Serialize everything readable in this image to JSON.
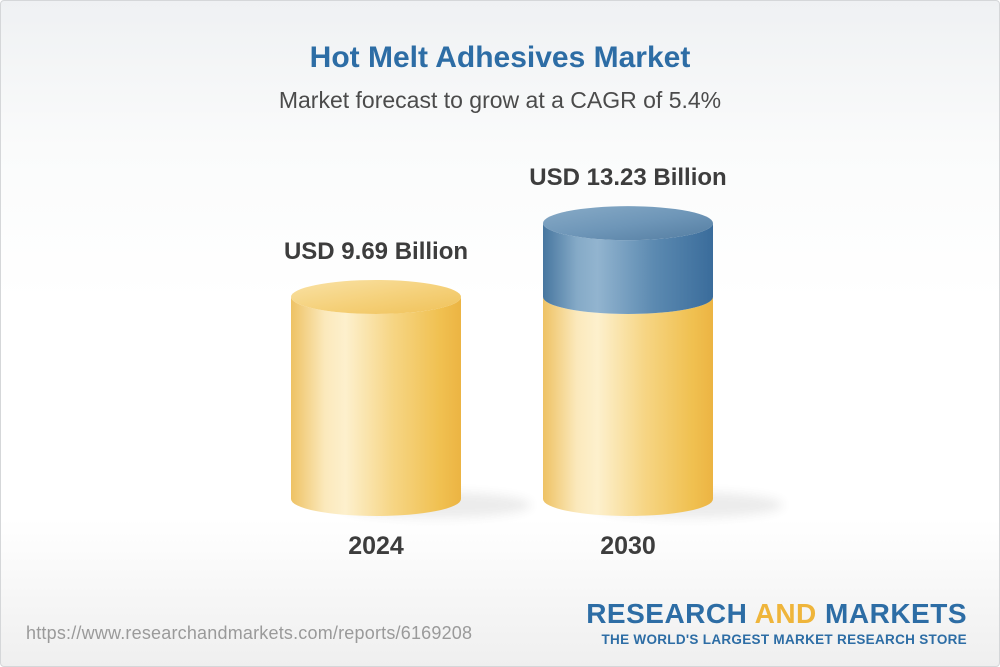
{
  "chart_data": {
    "type": "bar",
    "subtype": "3d-cylinder",
    "title": "Hot Melt Adhesives Market",
    "subtitle": "Market forecast to grow at a CAGR of 5.4%",
    "cagr_percent": 5.4,
    "unit": "USD Billion",
    "categories": [
      "2024",
      "2030"
    ],
    "values": [
      9.69,
      13.23
    ],
    "bars": [
      {
        "category": "2024",
        "value": 9.69,
        "label": "USD 9.69 Billion",
        "segments": [
          {
            "value": 9.69,
            "color": "gold"
          }
        ]
      },
      {
        "category": "2030",
        "value": 13.23,
        "label": "USD 13.23 Billion",
        "segments": [
          {
            "value": 9.69,
            "color": "gold"
          },
          {
            "value": 3.54,
            "color": "blue"
          }
        ]
      }
    ],
    "legend": "none",
    "axes": "none",
    "colors": {
      "gold": "#f2c763",
      "blue": "#4f7ea8",
      "label_text": "#3d3d3d",
      "title_blue": "#2d6da5"
    }
  },
  "footer": {
    "url": "https://www.researchandmarkets.com/reports/6169208",
    "brand": {
      "word1": "RESEARCH",
      "word2": "AND",
      "word3": "MARKETS",
      "tagline": "THE WORLD'S LARGEST MARKET RESEARCH STORE"
    }
  }
}
